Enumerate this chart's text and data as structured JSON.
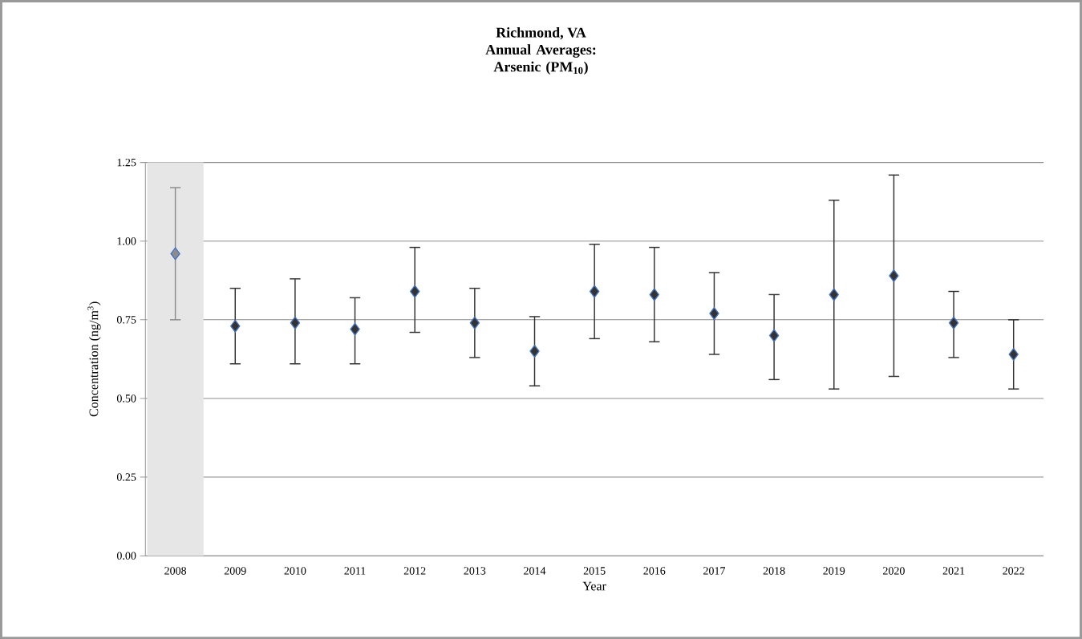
{
  "chart_data": {
    "type": "scatter",
    "title": "Richmond, VA",
    "subtitle": "Annual Averages: Arsenic (PM$_{10}$)",
    "xlabel": "Year",
    "ylabel": "Concentration (ng/m$^{3}$)",
    "categories": [
      "2008",
      "2009",
      "2010",
      "2011",
      "2012",
      "2013",
      "2014",
      "2015",
      "2016",
      "2017",
      "2018",
      "2019",
      "2020",
      "2021",
      "2022"
    ],
    "values": [
      0.96,
      0.73,
      0.74,
      0.72,
      0.84,
      0.74,
      0.65,
      0.84,
      0.83,
      0.77,
      0.7,
      0.83,
      0.89,
      0.74,
      0.64
    ],
    "errors": [
      [
        0.75,
        1.17
      ],
      [
        0.61,
        0.85
      ],
      [
        0.61,
        0.88
      ],
      [
        0.61,
        0.82
      ],
      [
        0.71,
        0.98
      ],
      [
        0.63,
        0.85
      ],
      [
        0.54,
        0.76
      ],
      [
        0.69,
        0.99
      ],
      [
        0.68,
        0.98
      ],
      [
        0.64,
        0.9
      ],
      [
        0.56,
        0.83
      ],
      [
        0.53,
        1.13
      ],
      [
        0.57,
        1.21
      ],
      [
        0.63,
        0.84
      ],
      [
        0.53,
        0.75
      ]
    ],
    "colors": [
      "#8c8c8c",
      "#333333",
      "#333333",
      "#333333",
      "#333333",
      "#333333",
      "#333333",
      "#333333",
      "#333333",
      "#333333",
      "#333333",
      "#333333",
      "#333333",
      "#333333",
      "#333333"
    ],
    "ylim": [
      0,
      1.25
    ],
    "yticks": [
      {
        "value": 0,
        "label": "0.00"
      },
      {
        "value": 0.25,
        "label": "0.25"
      },
      {
        "value": 0.5,
        "label": "0.50"
      },
      {
        "value": 0.75,
        "label": "0.75"
      },
      {
        "value": 1.0,
        "label": "1.00"
      },
      {
        "value": 1.25,
        "label": "1.25"
      }
    ],
    "bands": [
      {
        "axis": "x",
        "from": "2008",
        "to": "2008",
        "color": "#e6e6e6"
      }
    ],
    "grid": "y",
    "marker": "diamond"
  }
}
